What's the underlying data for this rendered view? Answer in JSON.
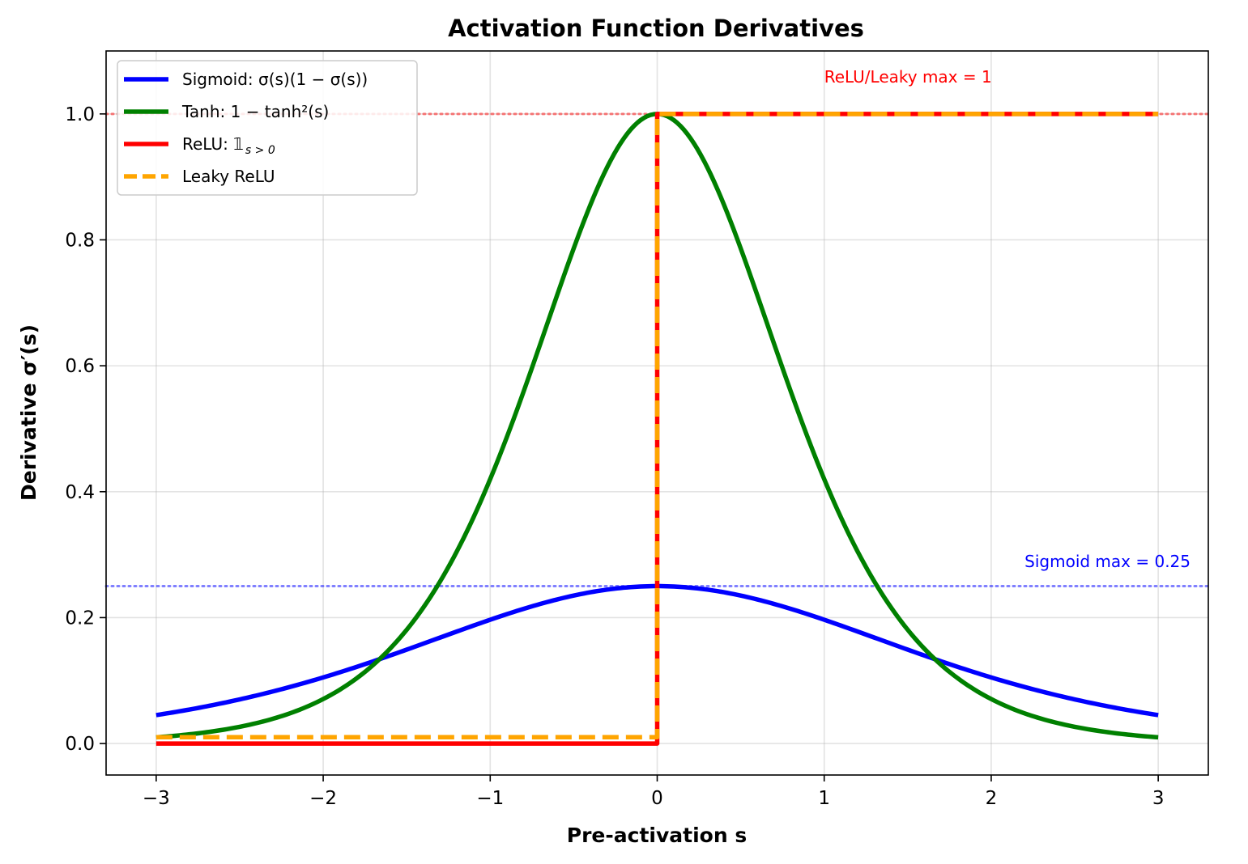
{
  "chart_data": {
    "type": "line",
    "title": "Activation Function Derivatives",
    "xlabel": "Pre-activation s",
    "ylabel": "Derivative σ′(s)",
    "xlim": [
      -3.3,
      3.3
    ],
    "ylim": [
      -0.05,
      1.1
    ],
    "grid": true,
    "legend_position": "top-left",
    "x_ticks": [
      -3,
      -2,
      -1,
      0,
      1,
      2,
      3
    ],
    "x_tick_labels": [
      "−3",
      "−2",
      "−1",
      "0",
      "1",
      "2",
      "3"
    ],
    "y_ticks": [
      0.0,
      0.2,
      0.4,
      0.6,
      0.8,
      1.0
    ],
    "y_tick_labels": [
      "0.0",
      "0.2",
      "0.4",
      "0.6",
      "0.8",
      "1.0"
    ],
    "series": [
      {
        "name": "Sigmoid",
        "legend": "Sigmoid: σ(s)(1 − σ(s))",
        "color": "#0000ff",
        "style": "solid",
        "x": [
          -3.0,
          -2.5,
          -2.0,
          -1.5,
          -1.0,
          -0.5,
          0.0,
          0.5,
          1.0,
          1.5,
          2.0,
          2.5,
          3.0
        ],
        "values": [
          0.045,
          0.07,
          0.105,
          0.149,
          0.197,
          0.235,
          0.25,
          0.235,
          0.197,
          0.149,
          0.105,
          0.07,
          0.045
        ]
      },
      {
        "name": "Tanh",
        "legend": "Tanh: 1 − tanh²(s)",
        "color": "#008000",
        "style": "solid",
        "x": [
          -3.0,
          -2.5,
          -2.0,
          -1.5,
          -1.0,
          -0.5,
          0.0,
          0.5,
          1.0,
          1.5,
          2.0,
          2.5,
          3.0
        ],
        "values": [
          0.01,
          0.027,
          0.071,
          0.181,
          0.42,
          0.786,
          1.0,
          0.786,
          0.42,
          0.181,
          0.071,
          0.027,
          0.01
        ]
      },
      {
        "name": "ReLU",
        "legend": "ReLU: 𝟙",
        "legend_subscript": "s > 0",
        "color": "#ff0000",
        "style": "solid",
        "x": [
          -3.0,
          0.0,
          0.0,
          3.0
        ],
        "values": [
          0.0,
          0.0,
          1.0,
          1.0
        ]
      },
      {
        "name": "Leaky ReLU",
        "legend": "Leaky ReLU",
        "color": "#ffa500",
        "style": "dashed",
        "x": [
          -3.0,
          0.0,
          0.0,
          3.0
        ],
        "values": [
          0.01,
          0.01,
          1.0,
          1.0
        ]
      }
    ],
    "reference_lines": [
      {
        "y": 1.0,
        "color": "#ff0000",
        "style": "dotted"
      },
      {
        "y": 0.25,
        "color": "#0000ff",
        "style": "dotted"
      }
    ],
    "annotations": [
      {
        "text": "ReLU/Leaky max = 1",
        "x": 1.0,
        "y": 1.05,
        "color": "#ff0000"
      },
      {
        "text": "Sigmoid max = 0.25",
        "x": 2.2,
        "y": 0.28,
        "color": "#0000ff"
      }
    ]
  }
}
